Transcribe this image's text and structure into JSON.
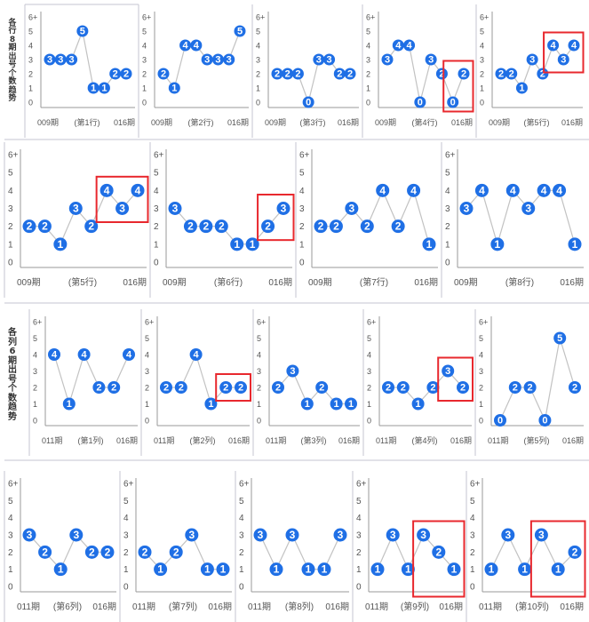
{
  "colors": {
    "node": "#1f6fe5",
    "node_text": "#ffffff",
    "line": "#c2c2c2",
    "axis": "#9a9a9a",
    "highlight": "#e8282e",
    "label": "#555555",
    "divider": "#c5c5d0"
  },
  "section_titles": {
    "rows": "各行8期出号个数趋势",
    "cols": "各列6期出号个数趋势"
  },
  "y_ticks": [
    "0",
    "1",
    "2",
    "3",
    "4",
    "5",
    "6+"
  ],
  "chart_data": [
    {
      "type": "line",
      "title": "第1行",
      "x_start": "009期",
      "x_end": "016期",
      "ylim": [
        0,
        6
      ],
      "values": [
        3,
        3,
        3,
        5,
        1,
        1,
        2,
        2
      ],
      "highlight": false
    },
    {
      "type": "line",
      "title": "第2行",
      "x_start": "009期",
      "x_end": "016期",
      "ylim": [
        0,
        6
      ],
      "values": [
        2,
        1,
        4,
        4,
        3,
        3,
        3,
        5
      ],
      "highlight": false
    },
    {
      "type": "line",
      "title": "第3行",
      "x_start": "009期",
      "x_end": "016期",
      "ylim": [
        0,
        6
      ],
      "values": [
        2,
        2,
        2,
        0,
        3,
        3,
        2,
        2
      ],
      "highlight": false
    },
    {
      "type": "line",
      "title": "第4行",
      "x_start": "009期",
      "x_end": "016期",
      "ylim": [
        0,
        6
      ],
      "values": [
        3,
        4,
        4,
        0,
        3,
        2,
        0,
        2
      ],
      "highlight": true
    },
    {
      "type": "line",
      "title": "第5行",
      "x_start": "009期",
      "x_end": "016期",
      "ylim": [
        0,
        6
      ],
      "values": [
        2,
        2,
        1,
        3,
        2,
        4,
        3,
        4
      ],
      "highlight": true
    },
    {
      "type": "line",
      "title": "第5行",
      "x_start": "009期",
      "x_end": "016期",
      "ylim": [
        0,
        6
      ],
      "values": [
        2,
        2,
        1,
        3,
        2,
        4,
        3,
        4
      ],
      "highlight": true
    },
    {
      "type": "line",
      "title": "第6行",
      "x_start": "009期",
      "x_end": "016期",
      "ylim": [
        0,
        6
      ],
      "values": [
        3,
        2,
        2,
        2,
        1,
        1,
        2,
        3
      ],
      "highlight": true
    },
    {
      "type": "line",
      "title": "第7行",
      "x_start": "009期",
      "x_end": "016期",
      "ylim": [
        0,
        6
      ],
      "values": [
        2,
        2,
        3,
        2,
        4,
        2,
        4,
        1
      ],
      "highlight": false
    },
    {
      "type": "line",
      "title": "第8行",
      "x_start": "009期",
      "x_end": "016期",
      "ylim": [
        0,
        6
      ],
      "values": [
        3,
        4,
        1,
        4,
        3,
        4,
        4,
        1
      ],
      "highlight": false
    },
    {
      "type": "line",
      "title": "第1列",
      "x_start": "011期",
      "x_end": "016期",
      "ylim": [
        0,
        6
      ],
      "values": [
        4,
        1,
        4,
        2,
        2,
        4
      ],
      "highlight": false
    },
    {
      "type": "line",
      "title": "第2列",
      "x_start": "011期",
      "x_end": "016期",
      "ylim": [
        0,
        6
      ],
      "values": [
        2,
        2,
        4,
        1,
        2,
        2
      ],
      "highlight": true
    },
    {
      "type": "line",
      "title": "第3列",
      "x_start": "011期",
      "x_end": "016期",
      "ylim": [
        0,
        6
      ],
      "values": [
        2,
        3,
        1,
        2,
        1,
        1
      ],
      "highlight": false
    },
    {
      "type": "line",
      "title": "第4列",
      "x_start": "011期",
      "x_end": "016期",
      "ylim": [
        0,
        6
      ],
      "values": [
        2,
        2,
        1,
        2,
        3,
        2
      ],
      "highlight": true
    },
    {
      "type": "line",
      "title": "第5列",
      "x_start": "011期",
      "x_end": "016期",
      "ylim": [
        0,
        6
      ],
      "values": [
        0,
        2,
        2,
        0,
        5,
        2
      ],
      "highlight": false
    },
    {
      "type": "line",
      "title": "第6列",
      "x_start": "011期",
      "x_end": "016期",
      "ylim": [
        0,
        6
      ],
      "values": [
        3,
        2,
        1,
        3,
        2,
        2
      ],
      "highlight": false
    },
    {
      "type": "line",
      "title": "第7列",
      "x_start": "011期",
      "x_end": "016期",
      "ylim": [
        0,
        6
      ],
      "values": [
        2,
        1,
        2,
        3,
        1,
        1
      ],
      "highlight": false
    },
    {
      "type": "line",
      "title": "第8列",
      "x_start": "011期",
      "x_end": "016期",
      "ylim": [
        0,
        6
      ],
      "values": [
        3,
        1,
        3,
        1,
        1,
        3
      ],
      "highlight": false
    },
    {
      "type": "line",
      "title": "第9列",
      "x_start": "011期",
      "x_end": "016期",
      "ylim": [
        0,
        6
      ],
      "values": [
        1,
        3,
        1,
        3,
        2,
        1
      ],
      "highlight": true
    },
    {
      "type": "line",
      "title": "第10列",
      "x_start": "011期",
      "x_end": "016期",
      "ylim": [
        0,
        6
      ],
      "values": [
        1,
        3,
        1,
        3,
        1,
        2
      ],
      "highlight": true
    }
  ]
}
